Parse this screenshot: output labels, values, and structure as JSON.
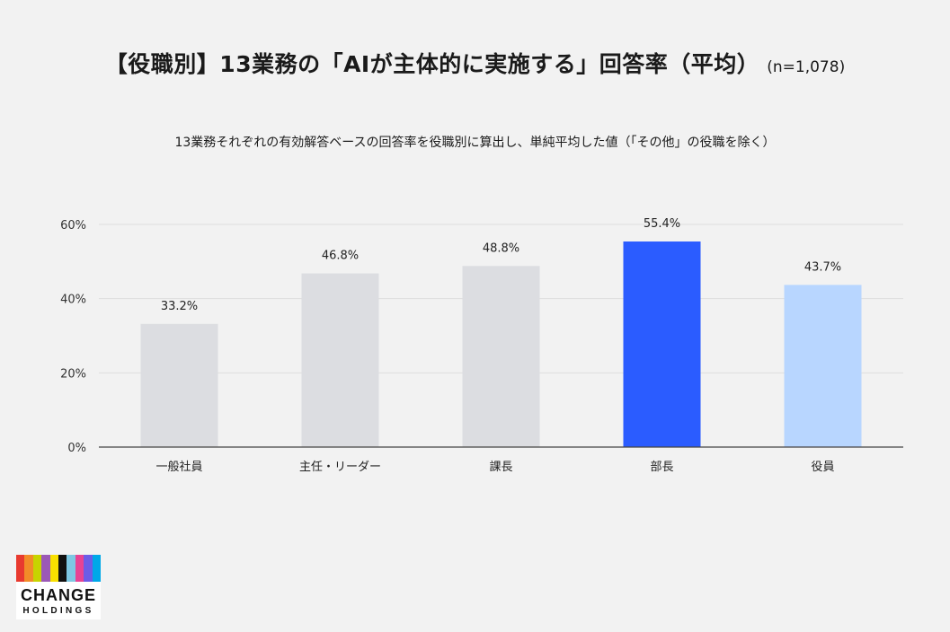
{
  "chart_data": {
    "type": "bar",
    "title": "【役職別】13業務の「AIが主体的に実施する」回答率（平均）",
    "sample_note": "(n=1,078)",
    "subtitle": "13業務それぞれの有効解答ベースの回答率を役職別に算出し、単純平均した値（「その他」の役職を除く）",
    "categories": [
      "一般社員",
      "主任・リーダー",
      "課長",
      "部長",
      "役員"
    ],
    "values": [
      33.2,
      46.8,
      48.8,
      55.4,
      43.7
    ],
    "value_labels": [
      "33.2%",
      "46.8%",
      "48.8%",
      "55.4%",
      "43.7%"
    ],
    "bar_colors": [
      "#dcdde1",
      "#dcdde1",
      "#dcdde1",
      "#2b5cff",
      "#b8d6ff"
    ],
    "ylim": [
      0,
      60
    ],
    "yticks": [
      0,
      20,
      40,
      60
    ],
    "ytick_labels": [
      "0%",
      "20%",
      "40%",
      "60%"
    ],
    "grid": true,
    "legend": "none",
    "xlabel": "",
    "ylabel": ""
  },
  "logo": {
    "name": "CHANGE HOLDINGS",
    "word1": "CHANGE",
    "word2": "HOLDINGS",
    "stripe_colors": [
      "#e83a2f",
      "#f28c28",
      "#c7d400",
      "#9b59b6",
      "#f9e000",
      "#111111",
      "#7ec8e3",
      "#e84393",
      "#6c5ce7",
      "#00a8e8"
    ]
  },
  "colors": {
    "background": "#f2f2f2",
    "gridline": "#dddddd",
    "axis": "#444444",
    "highlight": "#2b5cff"
  }
}
